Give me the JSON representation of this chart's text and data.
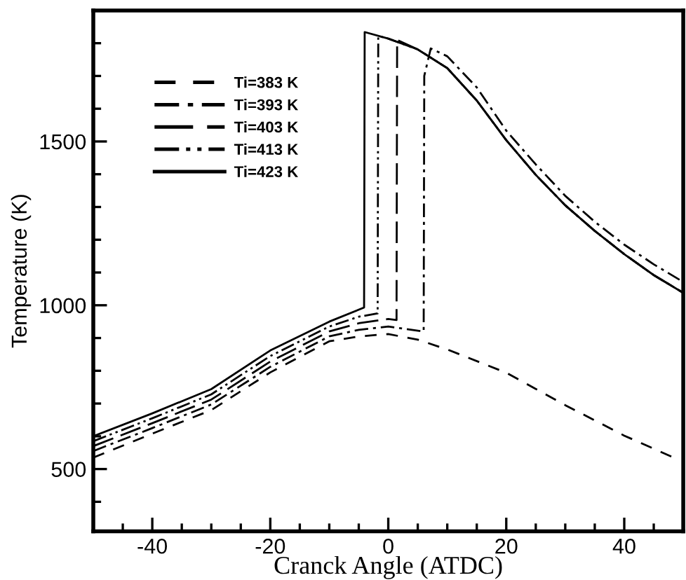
{
  "chart_data": {
    "type": "line",
    "xlabel": "Cranck Angle (ATDC)",
    "ylabel": "Temperature (K)",
    "xlim": [
      -50,
      50
    ],
    "ylim": [
      310,
      1900
    ],
    "xticks": [
      {
        "value": -45,
        "label": null
      },
      -40,
      {
        "value": -35,
        "label": null
      },
      {
        "value": -30,
        "label": null
      },
      {
        "value": -25,
        "label": null
      },
      -20,
      {
        "value": -15,
        "label": null
      },
      {
        "value": -10,
        "label": null
      },
      {
        "value": -5,
        "label": null
      },
      0,
      {
        "value": 5,
        "label": null
      },
      {
        "value": 10,
        "label": null
      },
      {
        "value": 15,
        "label": null
      },
      20,
      {
        "value": 25,
        "label": null
      },
      {
        "value": 30,
        "label": null
      },
      {
        "value": 35,
        "label": null
      },
      40,
      {
        "value": 45,
        "label": null
      }
    ],
    "yticks": [
      {
        "value": 400,
        "label": null
      },
      500,
      {
        "value": 600,
        "label": null
      },
      {
        "value": 700,
        "label": null
      },
      {
        "value": 800,
        "label": null
      },
      {
        "value": 900,
        "label": null
      },
      1000,
      {
        "value": 1100,
        "label": null
      },
      {
        "value": 1200,
        "label": null
      },
      {
        "value": 1300,
        "label": null
      },
      {
        "value": 1400,
        "label": null
      },
      1500,
      {
        "value": 1600,
        "label": null
      },
      {
        "value": 1700,
        "label": null
      },
      {
        "value": 1800,
        "label": null
      }
    ],
    "grid": false,
    "legend": "top left",
    "series": [
      {
        "name": "Ti=383 K",
        "color": "#000000",
        "line_style": "dashed",
        "x": [
          -50,
          -40,
          -30,
          -20,
          -10,
          -5,
          0,
          5,
          10,
          20,
          30,
          40,
          48
        ],
        "values": [
          535,
          608,
          680,
          795,
          890,
          905,
          912,
          895,
          865,
          794,
          695,
          602,
          538
        ]
      },
      {
        "name": "Ti=393 K",
        "color": "#000000",
        "line_style": "dashdot",
        "x": [
          -50,
          -40,
          -30,
          -20,
          -10,
          -5,
          0,
          6,
          6.1,
          7.2,
          10,
          15,
          20,
          25,
          30,
          35,
          40,
          45,
          50
        ],
        "values": [
          555,
          625,
          697,
          812,
          905,
          925,
          935,
          920,
          1700,
          1784,
          1760,
          1665,
          1533,
          1430,
          1334,
          1255,
          1185,
          1125,
          1071
        ]
      },
      {
        "name": "Ti=403 K",
        "color": "#000000",
        "line_style": "longdash",
        "x": [
          -50,
          -40,
          -30,
          -20,
          -10,
          -5,
          0,
          1.4,
          1.5,
          5,
          10,
          15,
          20,
          25,
          30,
          35,
          40,
          45,
          50
        ],
        "values": [
          570,
          640,
          712,
          828,
          920,
          945,
          958,
          955,
          1810,
          1781,
          1724,
          1625,
          1504,
          1398,
          1305,
          1227,
          1156,
          1092,
          1038
        ]
      },
      {
        "name": "Ti=413 K",
        "color": "#000000",
        "line_style": "dashdotdot",
        "x": [
          -50,
          -40,
          -30,
          -20,
          -10,
          -5,
          -1.8,
          -1.7,
          0,
          5,
          10,
          15,
          20,
          25,
          30,
          35,
          40,
          45,
          50
        ],
        "values": [
          585,
          655,
          728,
          845,
          935,
          965,
          975,
          1822,
          1814,
          1781,
          1724,
          1625,
          1504,
          1398,
          1305,
          1227,
          1156,
          1092,
          1038
        ]
      },
      {
        "name": "Ti=423 K",
        "color": "#000000",
        "line_style": "solid",
        "x": [
          -50,
          -40,
          -30,
          -20,
          -10,
          -4.1,
          -4,
          0,
          5,
          10,
          15,
          20,
          25,
          30,
          35,
          40,
          45,
          50
        ],
        "values": [
          600,
          670,
          744,
          862,
          950,
          993,
          1834,
          1814,
          1781,
          1724,
          1625,
          1504,
          1398,
          1305,
          1227,
          1156,
          1092,
          1038
        ]
      }
    ]
  }
}
